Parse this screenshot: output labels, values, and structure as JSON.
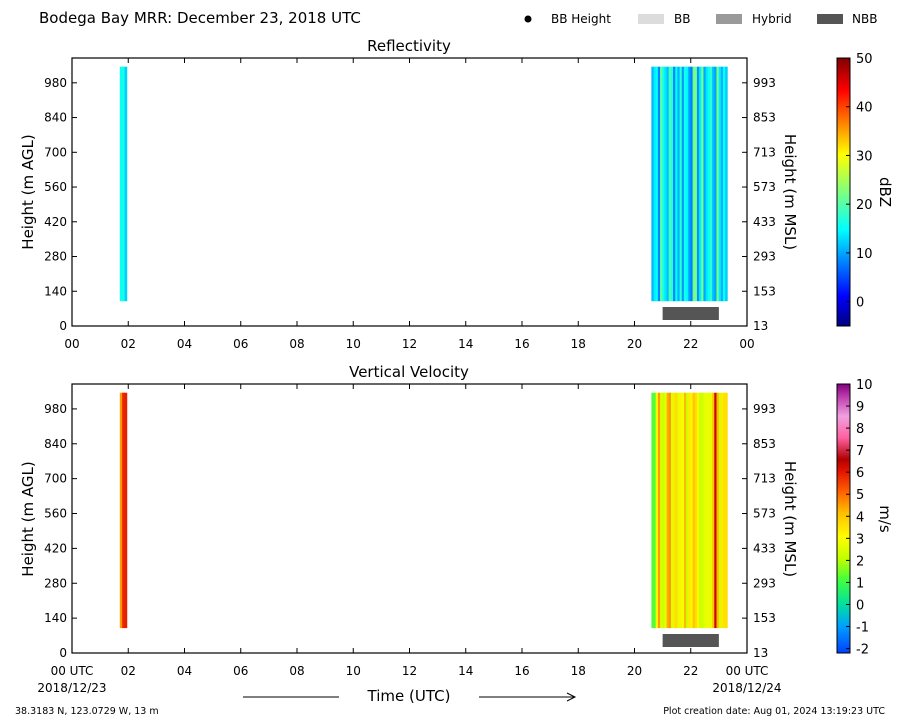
{
  "header": {
    "title": "Bodega Bay MRR:  December 23, 2018 UTC",
    "legend": [
      {
        "label": "BB Height",
        "kind": "dot",
        "color": "#000000"
      },
      {
        "label": "BB",
        "kind": "swatch",
        "color": "#dcdcdc"
      },
      {
        "label": "Hybrid",
        "kind": "swatch",
        "color": "#9a9a9a"
      },
      {
        "label": "NBB",
        "kind": "swatch",
        "color": "#555555"
      }
    ]
  },
  "footer": {
    "location": "38.3183 N, 123.0729 W, 13 m",
    "creation_date": "Plot creation date: Aug 01, 2024 13:19:23 UTC",
    "date_start": "2018/12/23",
    "date_end": "2018/12/24",
    "xlabel": "Time (UTC)"
  },
  "chart_data": [
    {
      "type": "heatmap",
      "title": "Reflectivity",
      "ylabel": "Height (m AGL)",
      "ylabel_right": "Height (m MSL)",
      "x_ticks": [
        "00",
        "02",
        "04",
        "06",
        "08",
        "10",
        "12",
        "14",
        "16",
        "18",
        "20",
        "22",
        "00"
      ],
      "y_ticks": [
        "0",
        "140",
        "280",
        "420",
        "560",
        "700",
        "840",
        "980"
      ],
      "y_ticks_right": [
        "13",
        "153",
        "293",
        "433",
        "573",
        "713",
        "853",
        "993"
      ],
      "xlim_hours": [
        0,
        24
      ],
      "ylim_m": [
        0,
        1080
      ],
      "colorbar": {
        "label": "dBZ",
        "range": [
          -5,
          50
        ],
        "ticks": [
          "0",
          "10",
          "20",
          "30",
          "40",
          "50"
        ],
        "colormap": "jet"
      },
      "echo_periods_utc_hours": [
        [
          1.7,
          1.95
        ],
        [
          20.6,
          23.3
        ]
      ],
      "echo_height_range_m": [
        100,
        1045
      ],
      "bright_band_bars": [
        {
          "type": "NBB",
          "start_utc_hours": 21.0,
          "end_utc_hours": 23.0
        }
      ]
    },
    {
      "type": "heatmap",
      "title": "Vertical Velocity",
      "ylabel": "Height (m AGL)",
      "ylabel_right": "Height (m MSL)",
      "x_ticks": [
        "00 UTC",
        "02",
        "04",
        "06",
        "08",
        "10",
        "12",
        "14",
        "16",
        "18",
        "20",
        "22",
        "00 UTC"
      ],
      "y_ticks": [
        "0",
        "140",
        "280",
        "420",
        "560",
        "700",
        "840",
        "980"
      ],
      "y_ticks_right": [
        "13",
        "153",
        "293",
        "433",
        "573",
        "713",
        "853",
        "993"
      ],
      "xlim_hours": [
        0,
        24
      ],
      "ylim_m": [
        0,
        1080
      ],
      "colorbar": {
        "label": "m/s",
        "range": [
          -2.2,
          10
        ],
        "ticks": [
          "-2",
          "-1",
          "0",
          "1",
          "2",
          "3",
          "4",
          "5",
          "6",
          "7",
          "8",
          "9",
          "10"
        ],
        "colormap": "velocity"
      },
      "echo_periods_utc_hours": [
        [
          1.7,
          1.95
        ],
        [
          20.6,
          23.3
        ]
      ],
      "echo_height_range_m": [
        100,
        1045
      ],
      "bright_band_bars": [
        {
          "type": "NBB",
          "start_utc_hours": 21.0,
          "end_utc_hours": 23.0
        }
      ]
    }
  ]
}
